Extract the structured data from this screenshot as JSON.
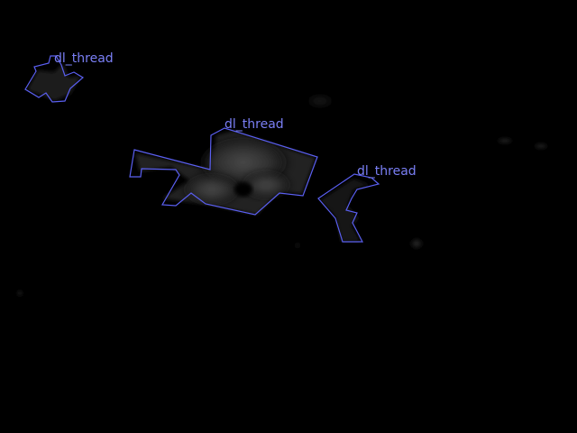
{
  "image": {
    "background": "#000000",
    "annotation_color": "#5a5ff0",
    "label_color": "#7a7ff5"
  },
  "annotations": [
    {
      "id": "a1",
      "label": "dl_thread"
    },
    {
      "id": "a2",
      "label": "dl_thread"
    },
    {
      "id": "a3",
      "label": "dl_thread"
    }
  ]
}
